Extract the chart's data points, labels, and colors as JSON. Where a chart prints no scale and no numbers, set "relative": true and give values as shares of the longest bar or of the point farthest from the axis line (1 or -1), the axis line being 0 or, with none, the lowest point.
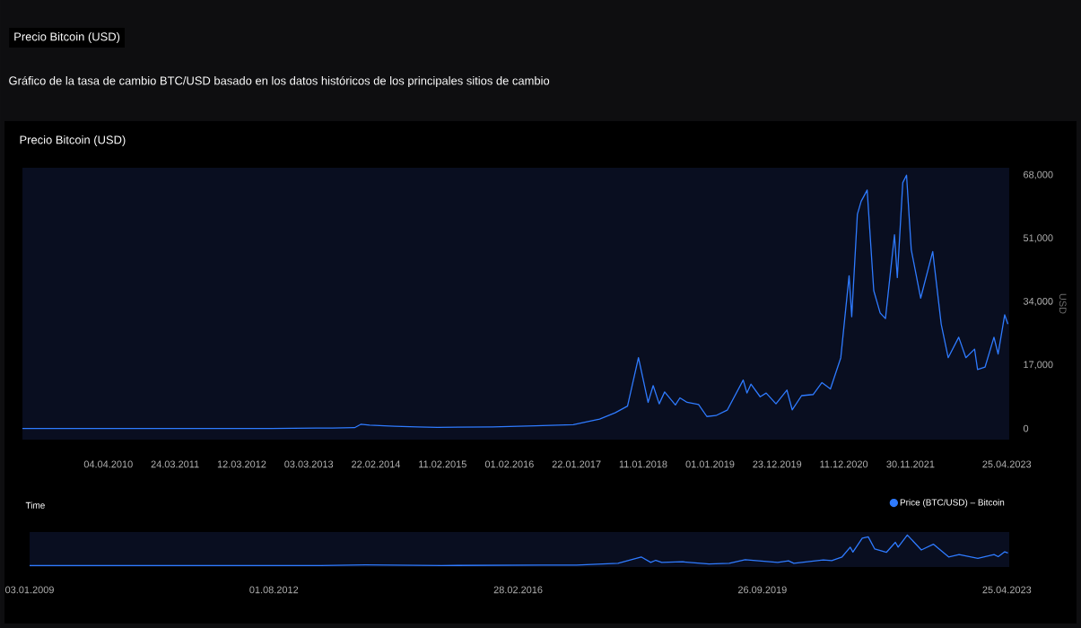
{
  "chart_data": [
    {
      "type": "line",
      "title": "Precio Bitcoin (USD)",
      "subtitle": "Gráfico de la tasa de cambio BTC/USD basado en los datos históricos de los principales sitios de cambio",
      "annotations": [
        "Precio Bitcoin (USD)"
      ],
      "xlabel": "Time",
      "ylabel": "USD",
      "legend": "bottom right",
      "xlim": [
        "2009-01-03",
        "2023-05-08"
      ],
      "xticks": [
        {
          "value": "2010-04-04",
          "label": "04.04.2010"
        },
        {
          "value": "2011-03-24",
          "label": "24.03.2011"
        },
        {
          "value": "2012-03-12",
          "label": "12.03.2012"
        },
        {
          "value": "2013-03-03",
          "label": "03.03.2013"
        },
        {
          "value": "2014-02-22",
          "label": "22.02.2014"
        },
        {
          "value": "2015-02-11",
          "label": "11.02.2015"
        },
        {
          "value": "2016-02-01",
          "label": "01.02.2016"
        },
        {
          "value": "2017-01-22",
          "label": "22.01.2017"
        },
        {
          "value": "2018-01-11",
          "label": "11.01.2018"
        },
        {
          "value": "2019-01-01",
          "label": "01.01.2019"
        },
        {
          "value": "2019-12-23",
          "label": "23.12.2019"
        },
        {
          "value": "2020-12-11",
          "label": "11.12.2020"
        },
        {
          "value": "2021-11-30",
          "label": "30.11.2021"
        },
        {
          "value": "2023-04-25",
          "label": "25.04.2023"
        }
      ],
      "ylim": [
        -3000,
        70000
      ],
      "yticks": [
        {
          "value": 0,
          "label": "0"
        },
        {
          "value": 17000,
          "label": "17,000"
        },
        {
          "value": 34000,
          "label": "34,000"
        },
        {
          "value": 51000,
          "label": "51,000"
        },
        {
          "value": 68000,
          "label": "68,000"
        }
      ],
      "series": [
        {
          "name": "Price (BTC/USD) – Bitcoin",
          "color": "#2f7bff",
          "x": [
            "2009-01-03",
            "2010-07-01",
            "2011-06-08",
            "2012-08-15",
            "2013-04-10",
            "2013-07-05",
            "2013-11-01",
            "2013-12-04",
            "2014-01-20",
            "2014-06-01",
            "2014-10-01",
            "2015-01-14",
            "2015-11-04",
            "2016-06-17",
            "2017-01-05",
            "2017-05-25",
            "2017-08-15",
            "2017-10-20",
            "2017-12-17",
            "2018-02-06",
            "2018-03-05",
            "2018-04-06",
            "2018-05-05",
            "2018-07-01",
            "2018-07-25",
            "2018-09-01",
            "2018-11-01",
            "2018-12-15",
            "2019-02-01",
            "2019-04-02",
            "2019-06-26",
            "2019-07-16",
            "2019-08-06",
            "2019-09-24",
            "2019-10-26",
            "2019-12-17",
            "2020-02-13",
            "2020-03-12",
            "2020-05-01",
            "2020-07-01",
            "2020-08-17",
            "2020-10-01",
            "2020-11-25",
            "2021-01-08",
            "2021-01-22",
            "2021-02-21",
            "2021-03-13",
            "2021-04-14",
            "2021-05-19",
            "2021-06-22",
            "2021-07-20",
            "2021-09-06",
            "2021-09-21",
            "2021-10-20",
            "2021-11-09",
            "2021-12-04",
            "2022-01-23",
            "2022-03-28",
            "2022-05-12",
            "2022-06-18",
            "2022-08-13",
            "2022-09-20",
            "2022-11-05",
            "2022-11-21",
            "2022-12-31",
            "2023-02-16",
            "2023-03-10",
            "2023-04-14",
            "2023-05-01"
          ],
          "values": [
            0,
            0,
            0,
            0,
            100,
            100,
            200,
            1100,
            900,
            600,
            400,
            300,
            400,
            700,
            1000,
            2500,
            4200,
            6000,
            19000,
            7000,
            11500,
            6600,
            9800,
            6300,
            8200,
            7000,
            6400,
            3200,
            3450,
            4900,
            13000,
            9500,
            11900,
            8500,
            9500,
            6600,
            10300,
            5000,
            8800,
            9100,
            12300,
            10600,
            19000,
            41000,
            30000,
            57500,
            61000,
            64000,
            37000,
            31000,
            29500,
            52000,
            40500,
            66000,
            68000,
            48000,
            35000,
            47500,
            28000,
            19000,
            24500,
            19000,
            21300,
            15800,
            16500,
            24500,
            20000,
            30500,
            28000
          ]
        }
      ]
    },
    {
      "type": "line",
      "relative": true,
      "tick_labels": "x",
      "xlim": [
        "2009-01-03",
        "2023-05-08"
      ],
      "xticks": [
        {
          "value": "2009-01-03",
          "label": "03.01.2009"
        },
        {
          "value": "2012-08-01",
          "label": "01.08.2012"
        },
        {
          "value": "2016-02-28",
          "label": "28.02.2016"
        },
        {
          "value": "2019-09-26",
          "label": "26.09.2019"
        },
        {
          "value": "2023-04-25",
          "label": "25.04.2023"
        }
      ],
      "series": [
        {
          "color": "#2f7bff",
          "x": [
            "2009-01-03",
            "2013-04-10",
            "2013-12-04",
            "2015-01-14",
            "2016-07-01",
            "2017-01-05",
            "2017-08-15",
            "2017-12-17",
            "2018-02-06",
            "2018-03-05",
            "2018-04-06",
            "2018-07-25",
            "2018-12-15",
            "2019-04-02",
            "2019-06-26",
            "2019-12-17",
            "2020-02-13",
            "2020-03-12",
            "2020-08-17",
            "2020-10-01",
            "2020-11-25",
            "2021-01-08",
            "2021-01-22",
            "2021-03-13",
            "2021-04-14",
            "2021-05-19",
            "2021-07-20",
            "2021-09-06",
            "2021-09-21",
            "2021-11-09",
            "2022-01-23",
            "2022-03-28",
            "2022-06-18",
            "2022-08-13",
            "2022-11-21",
            "2023-02-16",
            "2023-03-10",
            "2023-04-14",
            "2023-05-01"
          ],
          "values": [
            0,
            0,
            0.02,
            0,
            0.01,
            0.01,
            0.07,
            0.28,
            0.1,
            0.17,
            0.1,
            0.12,
            0.05,
            0.07,
            0.19,
            0.1,
            0.15,
            0.07,
            0.18,
            0.16,
            0.28,
            0.6,
            0.44,
            0.9,
            0.94,
            0.54,
            0.43,
            0.76,
            0.6,
            1,
            0.51,
            0.7,
            0.28,
            0.36,
            0.23,
            0.36,
            0.29,
            0.45,
            0.41
          ]
        }
      ]
    }
  ]
}
